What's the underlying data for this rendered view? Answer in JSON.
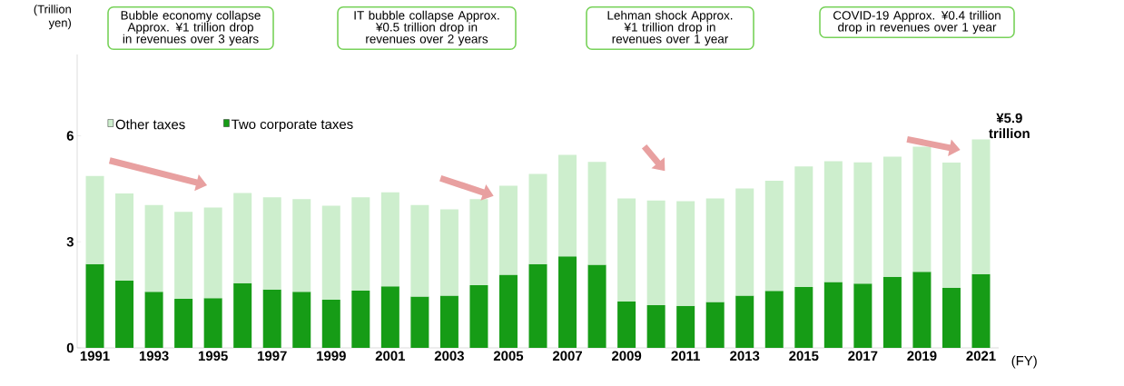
{
  "chart_data": {
    "type": "bar",
    "stacked": true,
    "ylabel": "(Trillion yen)",
    "xlabel": "(FY)",
    "categories": [
      "1991",
      null,
      "1993",
      null,
      "1995",
      null,
      "1997",
      null,
      "1999",
      null,
      "2001",
      null,
      "2003",
      null,
      "2005",
      null,
      "2007",
      null,
      "2009",
      null,
      "2011",
      null,
      "2013",
      null,
      "2015",
      null,
      "2017",
      null,
      "2019",
      null,
      "2021"
    ],
    "series": [
      {
        "name": "Two corporate taxes",
        "color": "#169c16",
        "values": [
          2.37,
          1.9,
          1.59,
          1.39,
          1.41,
          1.83,
          1.65,
          1.59,
          1.36,
          1.62,
          1.74,
          1.45,
          1.48,
          1.77,
          2.07,
          2.37,
          2.59,
          2.35,
          1.32,
          1.21,
          1.19,
          1.3,
          1.48,
          1.61,
          1.72,
          1.86,
          1.82,
          2.01,
          2.15,
          1.7,
          2.09
        ]
      },
      {
        "name": "Other taxes",
        "color": "#cdeecd",
        "values": [
          2.49,
          2.47,
          2.45,
          2.46,
          2.56,
          2.55,
          2.61,
          2.62,
          2.66,
          2.64,
          2.66,
          2.59,
          2.44,
          2.44,
          2.52,
          2.55,
          2.87,
          2.91,
          2.91,
          2.96,
          2.96,
          2.93,
          3.03,
          3.12,
          3.41,
          3.42,
          3.43,
          3.4,
          3.54,
          3.54,
          3.81
        ]
      }
    ],
    "ylim": [
      0,
      8.3
    ],
    "yticks": [
      0,
      3,
      6
    ],
    "grid": false,
    "legend": "top left",
    "annotations": [
      "Bubble economy collapse Approx. ¥1 trillion drop in revenues over 3 years",
      "IT bubble collapse Approx. ¥0.5 trillion drop in revenues over 2 years",
      "Lehman shock Approx. ¥1 trillion drop in revenues over 1 year",
      "COVID-19 Approx. ¥0.4 trillion drop in revenues over 1 year",
      {
        "text": "¥5.9 trillion",
        "x": "2021",
        "y": 5.9
      }
    ]
  }
}
